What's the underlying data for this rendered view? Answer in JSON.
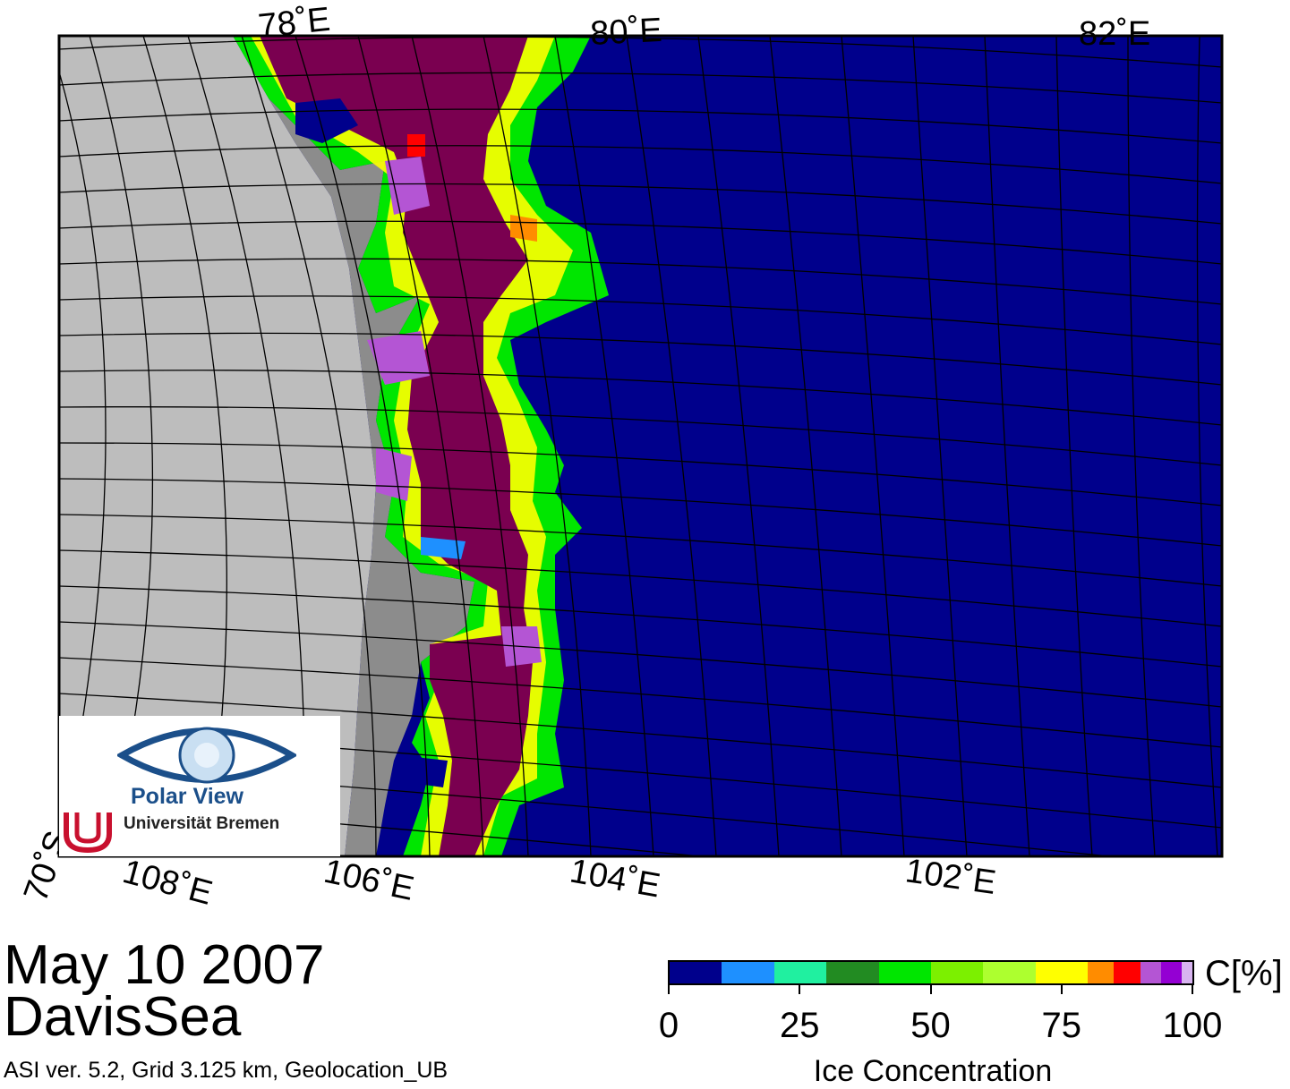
{
  "map": {
    "colors": {
      "ocean": "#00008c",
      "land_shelf": "#bdbdbd",
      "land_coast": "#8c8c8c",
      "frame": "#000000",
      "grid": "#000000"
    },
    "lon_labels_top": [
      "78˚E",
      "80˚E",
      "82˚E"
    ],
    "lon_labels_bottom": [
      "108˚E",
      "106˚E",
      "104˚E",
      "102˚E"
    ],
    "lat_label": "70˚S"
  },
  "logo": {
    "name": "Polar View",
    "org": "Universität Bremen",
    "eye_color": "#1b4f8a",
    "mark_color": "#c8102e"
  },
  "caption": {
    "date": "May 10 2007",
    "region": "DavisSea",
    "footnote": "ASI ver. 5.2,  Grid 3.125 km, Geolocation_UB"
  },
  "colorbar": {
    "title": "Ice Concentration",
    "unit": "C[%]",
    "ticks": [
      "0",
      "25",
      "50",
      "75",
      "100"
    ],
    "segments": [
      {
        "from": 0,
        "to": 10,
        "color": "#00008c"
      },
      {
        "from": 10,
        "to": 20,
        "color": "#1e90ff"
      },
      {
        "from": 20,
        "to": 30,
        "color": "#20f0a0"
      },
      {
        "from": 30,
        "to": 40,
        "color": "#228b22"
      },
      {
        "from": 40,
        "to": 50,
        "color": "#00e600"
      },
      {
        "from": 50,
        "to": 60,
        "color": "#7cf000"
      },
      {
        "from": 60,
        "to": 70,
        "color": "#adff2f"
      },
      {
        "from": 70,
        "to": 80,
        "color": "#ffff00"
      },
      {
        "from": 80,
        "to": 85,
        "color": "#ff8c00"
      },
      {
        "from": 85,
        "to": 90,
        "color": "#ff0000"
      },
      {
        "from": 90,
        "to": 94,
        "color": "#b455d4"
      },
      {
        "from": 94,
        "to": 98,
        "color": "#9400d3"
      },
      {
        "from": 98,
        "to": 100,
        "color": "#d8b4f0"
      }
    ]
  }
}
